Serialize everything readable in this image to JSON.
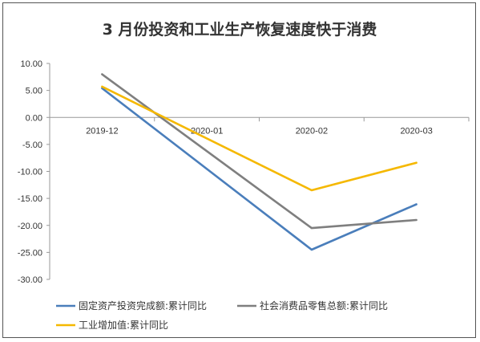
{
  "chart_data": {
    "type": "line",
    "title": "3 月份投资和工业生产恢复速度快于消费",
    "xlabel": "",
    "ylabel": "",
    "categories": [
      "2019-12",
      "2020-01",
      "2020-02",
      "2020-03"
    ],
    "ylim": [
      -30,
      10
    ],
    "yticks": [
      "10.00",
      "5.00",
      "0.00",
      "-5.00",
      "-10.00",
      "-15.00",
      "-20.00",
      "-25.00",
      "-30.00"
    ],
    "grid": false,
    "legend_position": "bottom",
    "series": [
      {
        "name": "固定资产投资完成额:累计同比",
        "color": "#4a7ebb",
        "values": [
          5.4,
          null,
          -24.5,
          -16.1
        ]
      },
      {
        "name": "社会消费品零售总额:累计同比",
        "color": "#7f7f7f",
        "values": [
          8.0,
          null,
          -20.5,
          -19.0
        ]
      },
      {
        "name": "工业增加值:累计同比",
        "color": "#f5b800",
        "values": [
          5.7,
          null,
          -13.5,
          -8.4
        ]
      }
    ]
  }
}
